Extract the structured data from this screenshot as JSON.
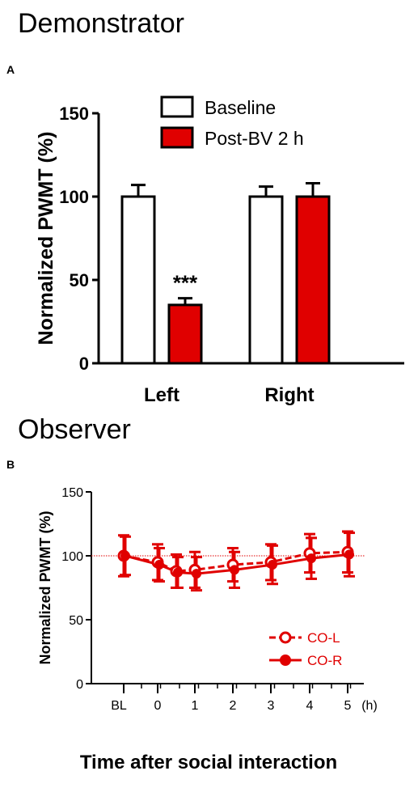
{
  "section_a_title": "Demonstrator",
  "panel_a_letter": "A",
  "section_b_title": "Observer",
  "panel_b_letter": "B",
  "colors": {
    "red": "#e00000",
    "black": "#000000",
    "white": "#ffffff"
  },
  "chart_data": [
    {
      "type": "bar",
      "ylabel": "Normalized PWMT (%)",
      "xlabel": "",
      "ylim": [
        0,
        150
      ],
      "yticks": [
        "0",
        "50",
        "100",
        "150"
      ],
      "categories": [
        "Left",
        "Right"
      ],
      "legend_position": "top-right",
      "series": [
        {
          "name": "Baseline",
          "values": [
            100,
            100
          ],
          "errors": [
            7,
            6
          ],
          "color": "#ffffff"
        },
        {
          "name": "Post-BV 2 h",
          "values": [
            35,
            100
          ],
          "errors": [
            4,
            8
          ],
          "color": "#e00000"
        }
      ],
      "annotations": [
        {
          "text": "***",
          "category": "Left",
          "series": "Post-BV 2 h"
        }
      ],
      "grid": false
    },
    {
      "type": "line",
      "ylabel": "Normalized PWMT (%)",
      "xlabel": "Time after social interaction",
      "x_unit": "(h)",
      "ylim": [
        0,
        150
      ],
      "yticks": [
        "0",
        "50",
        "100",
        "150"
      ],
      "x": [
        "BL",
        "0",
        "0.5",
        "1",
        "2",
        "3",
        "4",
        "5"
      ],
      "xtick_labels": [
        "BL",
        "0",
        "1",
        "2",
        "3",
        "4",
        "5"
      ],
      "reference_line": 100,
      "legend_position": "bottom-right",
      "series": [
        {
          "name": "CO-L",
          "marker": "open-circle",
          "line": "dashed",
          "values": [
            100,
            95,
            88,
            89,
            93,
            95,
            102,
            103
          ],
          "errors": [
            16,
            14,
            13,
            14,
            13,
            14,
            15,
            16
          ]
        },
        {
          "name": "CO-R",
          "marker": "filled-circle",
          "line": "solid",
          "values": [
            100,
            93,
            87,
            86,
            89,
            93,
            98,
            101
          ],
          "errors": [
            15,
            13,
            12,
            13,
            14,
            15,
            16,
            17
          ]
        }
      ],
      "grid": false
    }
  ]
}
